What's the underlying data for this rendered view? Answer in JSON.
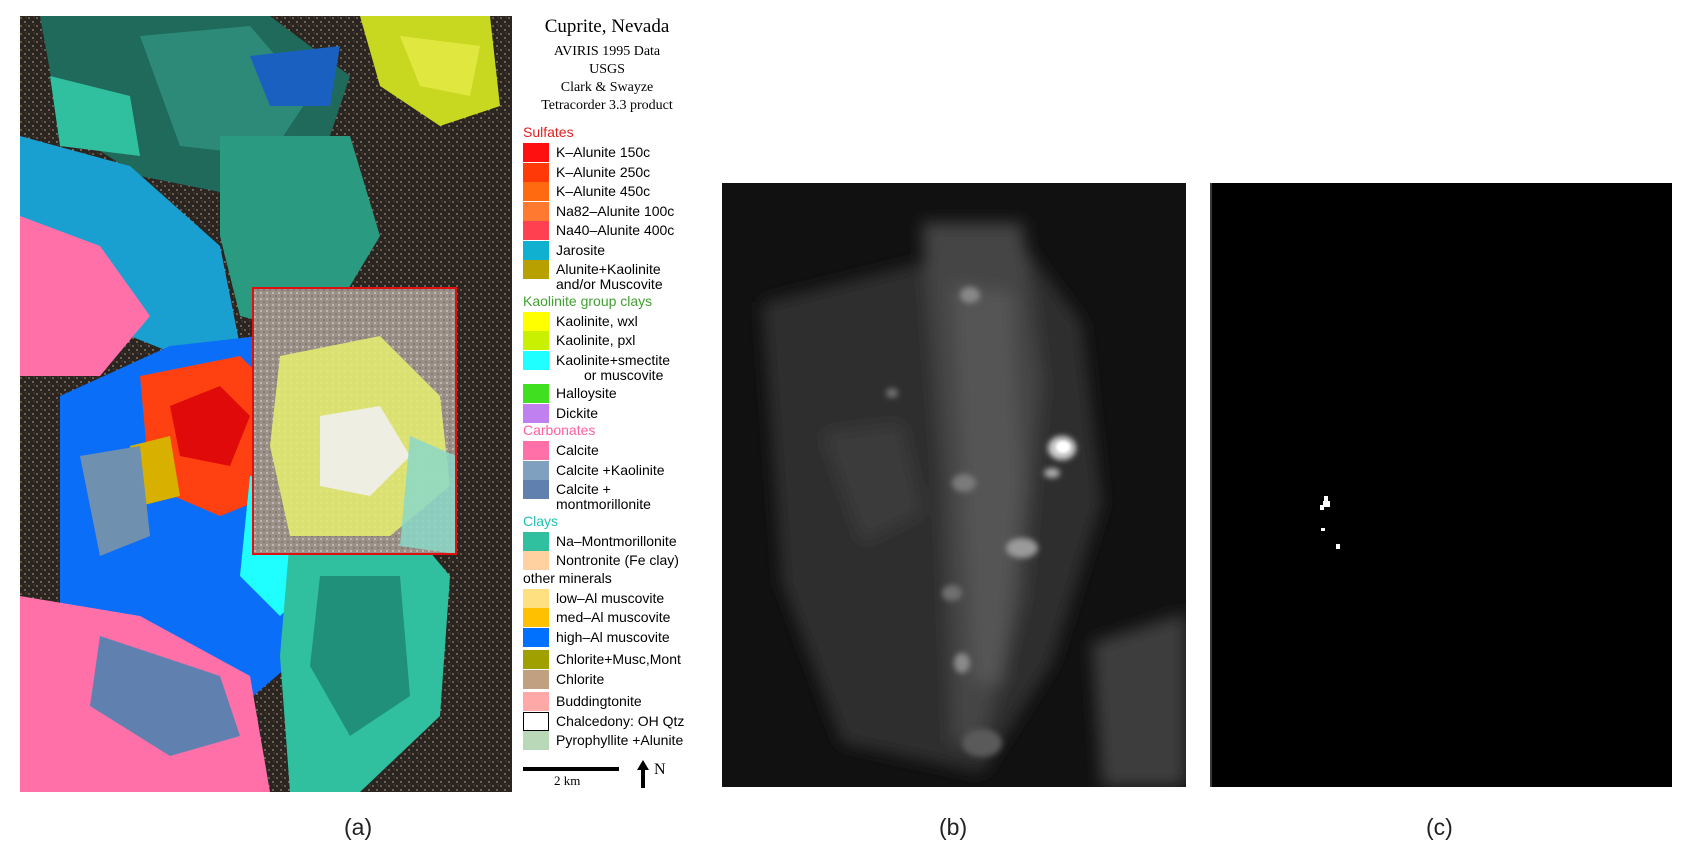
{
  "legend": {
    "title": "Cuprite, Nevada",
    "subtitle_lines": [
      "AVIRIS 1995 Data",
      "USGS",
      "Clark & Swayze",
      "Tetracorder 3.3 product"
    ],
    "groups": [
      {
        "name": "Sulfates",
        "color": "#e02020",
        "items": [
          {
            "label": "K–Alunite 150c",
            "color": "#ff1010"
          },
          {
            "label": "K–Alunite 250c",
            "color": "#ff3a08"
          },
          {
            "label": "K–Alunite 450c",
            "color": "#ff6a10"
          },
          {
            "label": "Na82–Alunite 100c",
            "color": "#ff7a30"
          },
          {
            "label": "Na40–Alunite 400c",
            "color": "#ff4050"
          },
          {
            "label": "Jarosite",
            "color": "#10b0d0"
          },
          {
            "label": "Alunite+Kaolinite",
            "label2": "and/or Muscovite",
            "color": "#b8a000"
          }
        ]
      },
      {
        "name": "Kaolinite group clays",
        "color": "#40a030",
        "items": [
          {
            "label": "Kaolinite, wxl",
            "color": "#ffff00"
          },
          {
            "label": "Kaolinite, pxl",
            "color": "#c8f000"
          },
          {
            "label": "Kaolinite+smectite",
            "label2": "or muscovite",
            "color": "#20ffff"
          },
          {
            "label": "Halloysite",
            "color": "#40e020"
          },
          {
            "label": "Dickite",
            "color": "#c080f0"
          }
        ]
      },
      {
        "name": "Carbonates",
        "color": "#ff60a0",
        "items": [
          {
            "label": "Calcite",
            "color": "#ff70a8"
          },
          {
            "label": "Calcite +Kaolinite",
            "color": "#80a0c0"
          },
          {
            "label": "Calcite +",
            "label2": "montmorillonite",
            "color": "#6080b0"
          }
        ]
      },
      {
        "name": "Clays",
        "color": "#20c0b0",
        "items": [
          {
            "label": "Na–Montmorillonite",
            "color": "#30c0a0"
          },
          {
            "label": "Nontronite (Fe clay)",
            "color": "#ffd0a0"
          }
        ]
      },
      {
        "name": "other minerals",
        "color": "#000000",
        "items": [
          {
            "label": "low–Al  muscovite",
            "color": "#ffe080"
          },
          {
            "label": "med–Al muscovite",
            "color": "#ffc000"
          },
          {
            "label": "high–Al muscovite",
            "color": "#0070ff"
          },
          {
            "label": "Chlorite+Musc,Mont",
            "color": "#a0a000"
          },
          {
            "label": "Chlorite",
            "color": "#c0a080"
          },
          {
            "label": "Buddingtonite",
            "color": "#ffa8a8"
          },
          {
            "label": "Chalcedony: OH Qtz",
            "color": "#ffffff"
          },
          {
            "label": "Pyrophyllite +Alunite",
            "color": "#b8d8b8"
          }
        ]
      }
    ],
    "scale_label": "2 km",
    "north_label": "N"
  },
  "captions": {
    "a": "(a)",
    "b": "(b)",
    "c": "(c)"
  }
}
